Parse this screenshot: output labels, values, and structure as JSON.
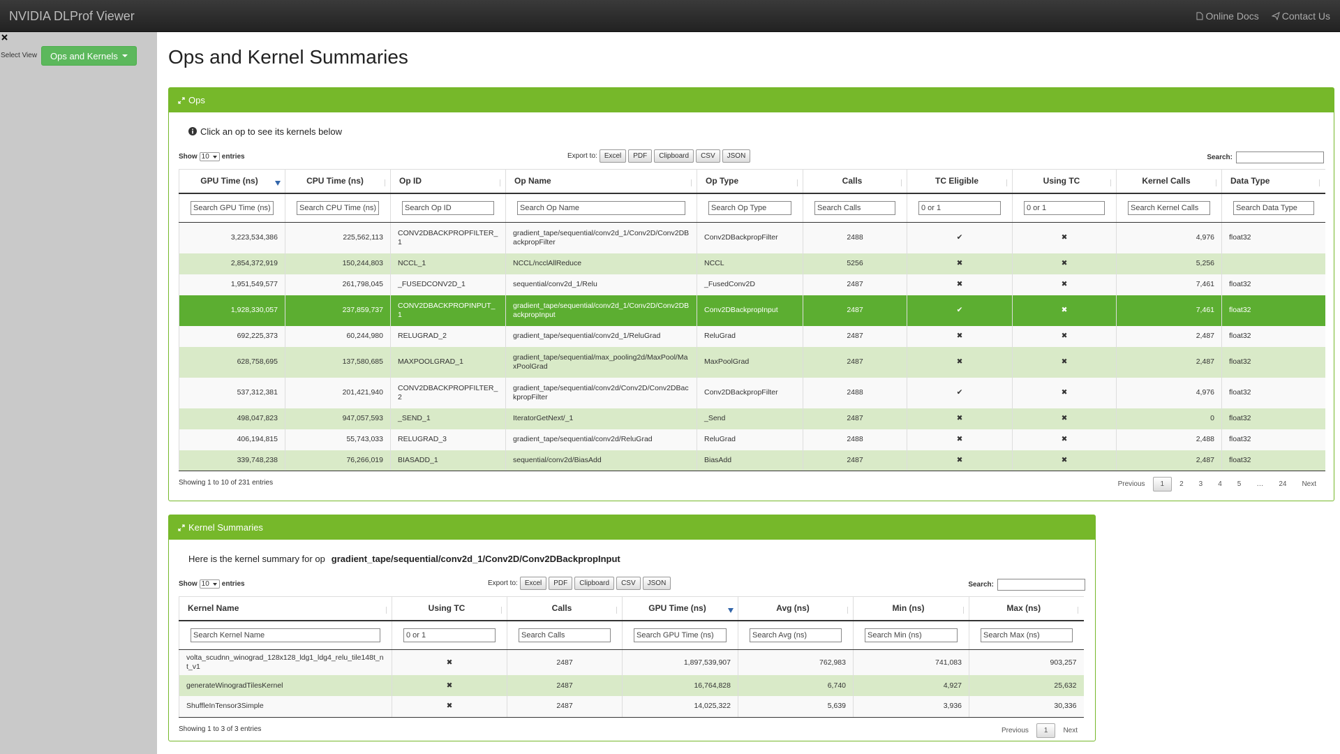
{
  "header": {
    "brand": "NVIDIA DLProf Viewer",
    "links": [
      "Online Docs",
      "Contact Us"
    ]
  },
  "sidebar": {
    "label": "Select View",
    "button": "Ops and Kernels"
  },
  "page_title": "Ops and Kernel Summaries",
  "ops": {
    "panel_title": "Ops",
    "info": "Click an op to see its kernels below",
    "length": {
      "show": "Show",
      "value": "10",
      "entries": "entries"
    },
    "export": {
      "label": "Export to:",
      "buttons": [
        "Excel",
        "PDF",
        "Clipboard",
        "CSV",
        "JSON"
      ]
    },
    "search_label": "Search:",
    "columns": [
      "GPU Time (ns)",
      "CPU Time (ns)",
      "Op ID",
      "Op Name",
      "Op Type",
      "Calls",
      "TC Eligible",
      "Using TC",
      "Kernel Calls",
      "Data Type"
    ],
    "filters": [
      "Search GPU Time (ns)",
      "Search CPU Time (ns)",
      "Search Op ID",
      "Search Op Name",
      "Search Op Type",
      "Search Calls",
      "0 or 1",
      "0 or 1",
      "Search Kernel Calls",
      "Search Data Type"
    ],
    "sorted_column": 0,
    "selected_row": 3,
    "rows": [
      [
        "3,223,534,386",
        "225,562,113",
        "CONV2DBACKPROPFILTER_1",
        "gradient_tape/sequential/conv2d_1/Conv2D/Conv2DBackpropFilter",
        "Conv2DBackpropFilter",
        "2488",
        "✔",
        "✖",
        "4,976",
        "float32"
      ],
      [
        "2,854,372,919",
        "150,244,803",
        "NCCL_1",
        "NCCL/ncclAllReduce",
        "NCCL",
        "5256",
        "✖",
        "✖",
        "5,256",
        null
      ],
      [
        "1,951,549,577",
        "261,798,045",
        "_FUSEDCONV2D_1",
        "sequential/conv2d_1/Relu",
        "_FusedConv2D",
        "2487",
        "✖",
        "✖",
        "7,461",
        "float32"
      ],
      [
        "1,928,330,057",
        "237,859,737",
        "CONV2DBACKPROPINPUT_1",
        "gradient_tape/sequential/conv2d_1/Conv2D/Conv2DBackpropInput",
        "Conv2DBackpropInput",
        "2487",
        "✔",
        "✖",
        "7,461",
        "float32"
      ],
      [
        "692,225,373",
        "60,244,980",
        "RELUGRAD_2",
        "gradient_tape/sequential/conv2d_1/ReluGrad",
        "ReluGrad",
        "2487",
        "✖",
        "✖",
        "2,487",
        "float32"
      ],
      [
        "628,758,695",
        "137,580,685",
        "MAXPOOLGRAD_1",
        "gradient_tape/sequential/max_pooling2d/MaxPool/MaxPoolGrad",
        "MaxPoolGrad",
        "2487",
        "✖",
        "✖",
        "2,487",
        "float32"
      ],
      [
        "537,312,381",
        "201,421,940",
        "CONV2DBACKPROPFILTER_2",
        "gradient_tape/sequential/conv2d/Conv2D/Conv2DBackpropFilter",
        "Conv2DBackpropFilter",
        "2488",
        "✔",
        "✖",
        "4,976",
        "float32"
      ],
      [
        "498,047,823",
        "947,057,593",
        "_SEND_1",
        "IteratorGetNext/_1",
        "_Send",
        "2487",
        "✖",
        "✖",
        "0",
        "float32"
      ],
      [
        "406,194,815",
        "55,743,033",
        "RELUGRAD_3",
        "gradient_tape/sequential/conv2d/ReluGrad",
        "ReluGrad",
        "2488",
        "✖",
        "✖",
        "2,488",
        "float32"
      ],
      [
        "339,748,238",
        "76,266,019",
        "BIASADD_1",
        "sequential/conv2d/BiasAdd",
        "BiasAdd",
        "2487",
        "✖",
        "✖",
        "2,487",
        "float32"
      ]
    ],
    "footer": "Showing 1 to 10 of 231 entries",
    "pagination": [
      "Previous",
      "1",
      "2",
      "3",
      "4",
      "5",
      "…",
      "24",
      "Next"
    ],
    "active_page_index": 1
  },
  "kernels": {
    "panel_title": "Kernel Summaries",
    "info": "Here is the kernel summary for op",
    "info_op": "gradient_tape/sequential/conv2d_1/Conv2D/Conv2DBackpropInput",
    "length": {
      "show": "Show",
      "value": "10",
      "entries": "entries"
    },
    "export": {
      "label": "Export to:",
      "buttons": [
        "Excel",
        "PDF",
        "Clipboard",
        "CSV",
        "JSON"
      ]
    },
    "search_label": "Search:",
    "columns": [
      "Kernel Name",
      "Using TC",
      "Calls",
      "GPU Time (ns)",
      "Avg (ns)",
      "Min (ns)",
      "Max (ns)"
    ],
    "filters": [
      "Search Kernel Name",
      "0 or 1",
      "Search Calls",
      "Search GPU Time (ns)",
      "Search Avg (ns)",
      "Search Min (ns)",
      "Search Max (ns)"
    ],
    "sorted_column": 3,
    "rows": [
      [
        "volta_scudnn_winograd_128x128_ldg1_ldg4_relu_tile148t_nt_v1",
        "✖",
        "2487",
        "1,897,539,907",
        "762,983",
        "741,083",
        "903,257"
      ],
      [
        "generateWinogradTilesKernel",
        "✖",
        "2487",
        "16,764,828",
        "6,740",
        "4,927",
        "25,632"
      ],
      [
        "ShuffleInTensor3Simple",
        "✖",
        "2487",
        "14,025,322",
        "5,639",
        "3,936",
        "30,336"
      ]
    ],
    "footer": "Showing 1 to 3 of 3 entries",
    "pagination": [
      "Previous",
      "1",
      "Next"
    ],
    "active_page_index": 1
  }
}
